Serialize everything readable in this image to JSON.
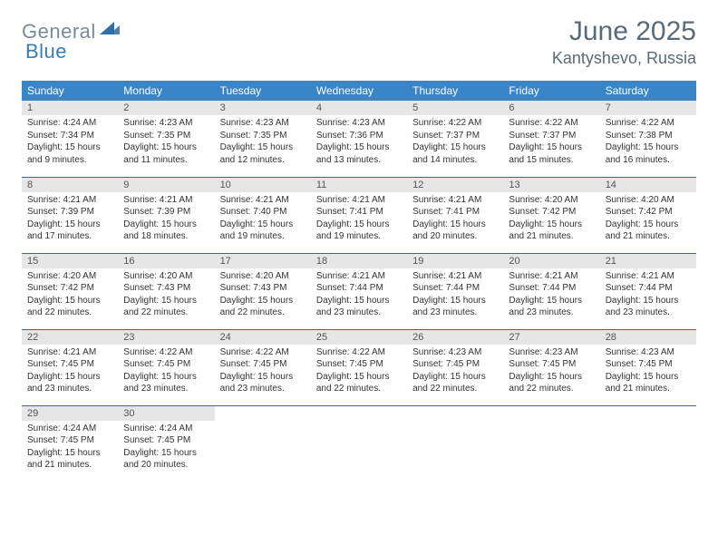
{
  "logo": {
    "gray": "General",
    "blue": "Blue"
  },
  "title": "June 2025",
  "location": "Kantyshevo, Russia",
  "colors": {
    "header_bg": "#3a85c6",
    "header_text": "#ffffff",
    "daynum_bg": "#e6e6e6",
    "daynum_text": "#555555",
    "body_text": "#333333",
    "rule": "#3a6a98",
    "logo_gray": "#7a8a99",
    "logo_blue": "#3a7db5",
    "title_color": "#5a6a78"
  },
  "weekdays": [
    "Sunday",
    "Monday",
    "Tuesday",
    "Wednesday",
    "Thursday",
    "Friday",
    "Saturday"
  ],
  "weeks": [
    [
      {
        "n": "1",
        "sr": "4:24 AM",
        "ss": "7:34 PM",
        "dl": "15 hours and 9 minutes."
      },
      {
        "n": "2",
        "sr": "4:23 AM",
        "ss": "7:35 PM",
        "dl": "15 hours and 11 minutes."
      },
      {
        "n": "3",
        "sr": "4:23 AM",
        "ss": "7:35 PM",
        "dl": "15 hours and 12 minutes."
      },
      {
        "n": "4",
        "sr": "4:23 AM",
        "ss": "7:36 PM",
        "dl": "15 hours and 13 minutes."
      },
      {
        "n": "5",
        "sr": "4:22 AM",
        "ss": "7:37 PM",
        "dl": "15 hours and 14 minutes."
      },
      {
        "n": "6",
        "sr": "4:22 AM",
        "ss": "7:37 PM",
        "dl": "15 hours and 15 minutes."
      },
      {
        "n": "7",
        "sr": "4:22 AM",
        "ss": "7:38 PM",
        "dl": "15 hours and 16 minutes."
      }
    ],
    [
      {
        "n": "8",
        "sr": "4:21 AM",
        "ss": "7:39 PM",
        "dl": "15 hours and 17 minutes."
      },
      {
        "n": "9",
        "sr": "4:21 AM",
        "ss": "7:39 PM",
        "dl": "15 hours and 18 minutes."
      },
      {
        "n": "10",
        "sr": "4:21 AM",
        "ss": "7:40 PM",
        "dl": "15 hours and 19 minutes."
      },
      {
        "n": "11",
        "sr": "4:21 AM",
        "ss": "7:41 PM",
        "dl": "15 hours and 19 minutes."
      },
      {
        "n": "12",
        "sr": "4:21 AM",
        "ss": "7:41 PM",
        "dl": "15 hours and 20 minutes."
      },
      {
        "n": "13",
        "sr": "4:20 AM",
        "ss": "7:42 PM",
        "dl": "15 hours and 21 minutes."
      },
      {
        "n": "14",
        "sr": "4:20 AM",
        "ss": "7:42 PM",
        "dl": "15 hours and 21 minutes."
      }
    ],
    [
      {
        "n": "15",
        "sr": "4:20 AM",
        "ss": "7:42 PM",
        "dl": "15 hours and 22 minutes."
      },
      {
        "n": "16",
        "sr": "4:20 AM",
        "ss": "7:43 PM",
        "dl": "15 hours and 22 minutes."
      },
      {
        "n": "17",
        "sr": "4:20 AM",
        "ss": "7:43 PM",
        "dl": "15 hours and 22 minutes."
      },
      {
        "n": "18",
        "sr": "4:21 AM",
        "ss": "7:44 PM",
        "dl": "15 hours and 23 minutes."
      },
      {
        "n": "19",
        "sr": "4:21 AM",
        "ss": "7:44 PM",
        "dl": "15 hours and 23 minutes."
      },
      {
        "n": "20",
        "sr": "4:21 AM",
        "ss": "7:44 PM",
        "dl": "15 hours and 23 minutes."
      },
      {
        "n": "21",
        "sr": "4:21 AM",
        "ss": "7:44 PM",
        "dl": "15 hours and 23 minutes."
      }
    ],
    [
      {
        "n": "22",
        "sr": "4:21 AM",
        "ss": "7:45 PM",
        "dl": "15 hours and 23 minutes."
      },
      {
        "n": "23",
        "sr": "4:22 AM",
        "ss": "7:45 PM",
        "dl": "15 hours and 23 minutes."
      },
      {
        "n": "24",
        "sr": "4:22 AM",
        "ss": "7:45 PM",
        "dl": "15 hours and 23 minutes."
      },
      {
        "n": "25",
        "sr": "4:22 AM",
        "ss": "7:45 PM",
        "dl": "15 hours and 22 minutes."
      },
      {
        "n": "26",
        "sr": "4:23 AM",
        "ss": "7:45 PM",
        "dl": "15 hours and 22 minutes."
      },
      {
        "n": "27",
        "sr": "4:23 AM",
        "ss": "7:45 PM",
        "dl": "15 hours and 22 minutes."
      },
      {
        "n": "28",
        "sr": "4:23 AM",
        "ss": "7:45 PM",
        "dl": "15 hours and 21 minutes."
      }
    ],
    [
      {
        "n": "29",
        "sr": "4:24 AM",
        "ss": "7:45 PM",
        "dl": "15 hours and 21 minutes."
      },
      {
        "n": "30",
        "sr": "4:24 AM",
        "ss": "7:45 PM",
        "dl": "15 hours and 20 minutes."
      },
      null,
      null,
      null,
      null,
      null
    ]
  ],
  "labels": {
    "sunrise": "Sunrise:",
    "sunset": "Sunset:",
    "daylight": "Daylight:"
  }
}
